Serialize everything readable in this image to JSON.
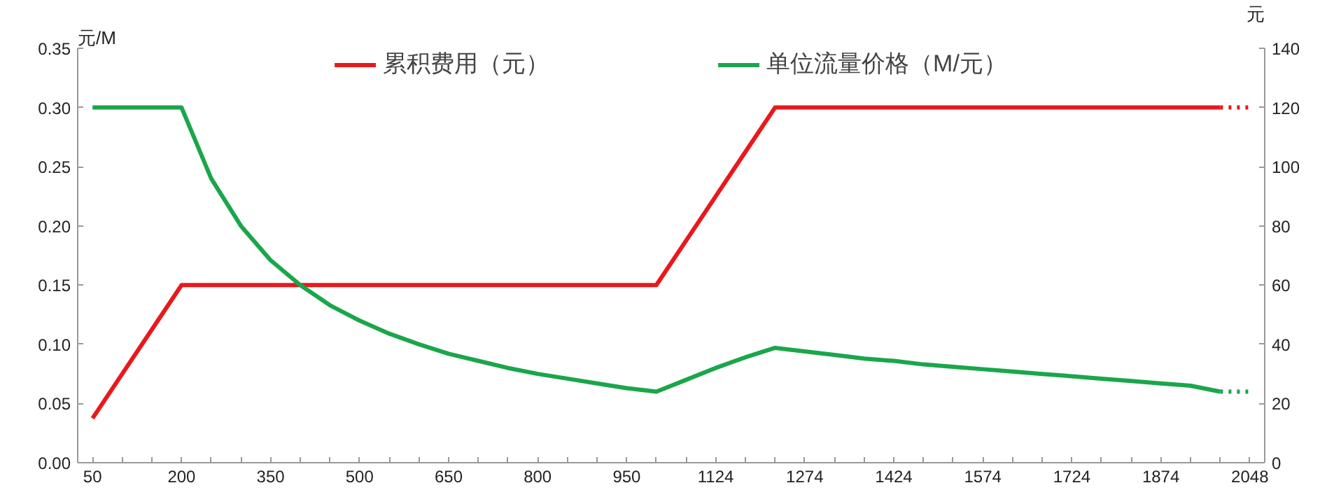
{
  "chart_data": {
    "type": "line",
    "ylabel": "元/M",
    "y2label": "元",
    "categories": [
      "50",
      null,
      null,
      "200",
      null,
      null,
      "350",
      null,
      null,
      "500",
      null,
      null,
      "650",
      null,
      null,
      "800",
      null,
      null,
      "950",
      null,
      null,
      "1124",
      null,
      null,
      "1274",
      null,
      null,
      "1424",
      null,
      null,
      "1574",
      null,
      null,
      "1724",
      null,
      null,
      "1874",
      null,
      null,
      "2048"
    ],
    "series": [
      {
        "name": "累积费用（元）",
        "color": "#e8191c",
        "axis": "y2",
        "values": [
          15,
          30,
          45,
          60,
          60,
          60,
          60,
          60,
          60,
          60,
          60,
          60,
          60,
          60,
          60,
          60,
          60,
          60,
          60,
          60,
          75,
          90,
          105,
          120,
          120,
          120,
          120,
          120,
          120,
          120,
          120,
          120,
          120,
          120,
          120,
          120,
          120,
          120,
          120,
          null
        ]
      },
      {
        "name": "单位流量价格（M/元）",
        "color": "#1aa64a",
        "values": [
          0.3,
          0.3,
          0.3,
          0.3,
          0.24,
          0.2,
          0.171,
          0.15,
          0.133,
          0.12,
          0.109,
          0.1,
          0.092,
          0.086,
          0.08,
          0.075,
          0.071,
          0.067,
          0.063,
          0.06,
          0.07,
          0.08,
          0.089,
          0.097,
          0.094,
          0.091,
          0.088,
          0.086,
          0.083,
          0.081,
          0.079,
          0.077,
          0.075,
          0.073,
          0.071,
          0.069,
          0.067,
          0.065,
          0.06,
          null
        ]
      },
      {
        "color": "#e8191c",
        "axis": "y2",
        "line_style": "dotted",
        "values": [
          null,
          null,
          null,
          null,
          null,
          null,
          null,
          null,
          null,
          null,
          null,
          null,
          null,
          null,
          null,
          null,
          null,
          null,
          null,
          null,
          null,
          null,
          null,
          null,
          null,
          null,
          null,
          null,
          null,
          null,
          null,
          null,
          null,
          null,
          null,
          null,
          null,
          null,
          120,
          120
        ]
      },
      {
        "color": "#1aa64a",
        "line_style": "dotted",
        "values": [
          null,
          null,
          null,
          null,
          null,
          null,
          null,
          null,
          null,
          null,
          null,
          null,
          null,
          null,
          null,
          null,
          null,
          null,
          null,
          null,
          null,
          null,
          null,
          null,
          null,
          null,
          null,
          null,
          null,
          null,
          null,
          null,
          null,
          null,
          null,
          null,
          null,
          null,
          0.06,
          0.06
        ]
      }
    ],
    "ylim": [
      0,
      0.35
    ],
    "yticks": [
      {
        "value": 0,
        "label": "0.00"
      },
      {
        "value": 0.05,
        "label": "0.05"
      },
      {
        "value": 0.1,
        "label": "0.10"
      },
      {
        "value": 0.15,
        "label": "0.15"
      },
      {
        "value": 0.2,
        "label": "0.20"
      },
      {
        "value": 0.25,
        "label": "0.25"
      },
      {
        "value": 0.3,
        "label": "0.30"
      },
      {
        "value": 0.35,
        "label": "0.35"
      }
    ],
    "y2lim": [
      0,
      140
    ],
    "y2ticks": [
      0,
      20,
      40,
      60,
      80,
      100,
      120,
      140
    ],
    "legend": "top",
    "grid": false,
    "line_style": "solid"
  }
}
